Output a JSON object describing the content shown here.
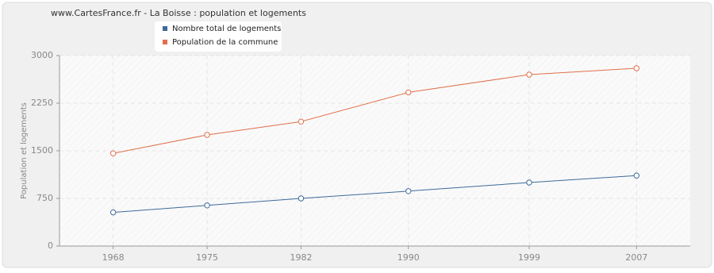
{
  "chart_data": {
    "type": "line",
    "title": "www.CartesFrance.fr - La Boisse : population et logements",
    "y_label": "Population et logements",
    "x": [
      1968,
      1975,
      1982,
      1990,
      1999,
      2007
    ],
    "series": [
      {
        "name": "Nombre total de logements",
        "color": "#3e6a9a",
        "values": [
          530,
          640,
          750,
          865,
          1000,
          1110
        ]
      },
      {
        "name": "Population de la commune",
        "color": "#e0704a",
        "values": [
          1460,
          1750,
          1960,
          2420,
          2700,
          2800
        ]
      }
    ],
    "xlim": [
      1964,
      2011
    ],
    "xticks": [
      1968,
      1975,
      1982,
      1990,
      1999,
      2007
    ],
    "ylim": [
      0,
      3000
    ],
    "yticks": [
      0,
      750,
      1500,
      2250,
      3000
    ],
    "grid": true
  }
}
